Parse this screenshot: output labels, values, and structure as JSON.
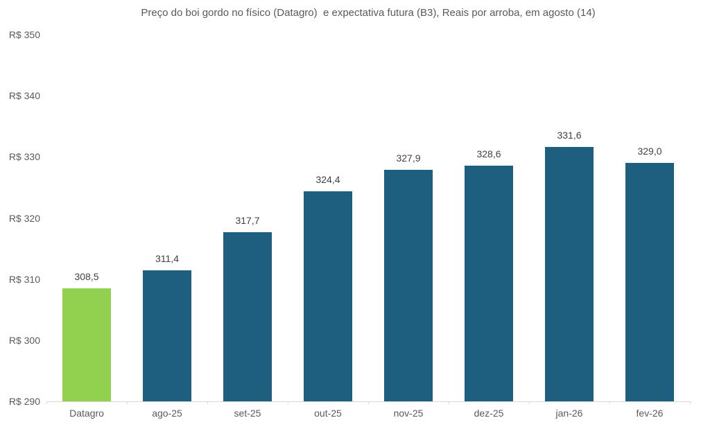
{
  "title": "Preço do boi gordo no físico (Datagro)  e expectativa futura (B3), Reais por arroba, em agosto (14)",
  "chart_data": {
    "type": "bar",
    "title": "Preço do boi gordo no físico (Datagro)  e expectativa futura (B3), Reais por arroba, em agosto (14)",
    "categories": [
      "Datagro",
      "ago-25",
      "set-25",
      "out-25",
      "nov-25",
      "dez-25",
      "jan-26",
      "fev-26"
    ],
    "values": [
      308.5,
      311.4,
      317.7,
      324.4,
      327.9,
      328.6,
      331.6,
      329.0
    ],
    "value_labels": [
      "308,5",
      "311,4",
      "317,7",
      "324,4",
      "327,9",
      "328,6",
      "331,6",
      "329,0"
    ],
    "bar_colors": [
      "#92D050",
      "#1E5F80",
      "#1E5F80",
      "#1E5F80",
      "#1E5F80",
      "#1E5F80",
      "#1E5F80",
      "#1E5F80"
    ],
    "xlabel": "",
    "ylabel": "",
    "ylim": [
      290,
      350
    ],
    "y_tick_values": [
      290,
      300,
      310,
      320,
      330,
      340,
      350
    ],
    "y_tick_labels": [
      "R$ 290",
      "R$ 300",
      "R$ 310",
      "R$ 320",
      "R$ 330",
      "R$ 340",
      "R$ 350"
    ],
    "grid": false,
    "legend": "none",
    "colors": {
      "physical_market": "#92D050",
      "futures": "#1E5F80",
      "axis_line": "#d9d9d9",
      "label_text": "#404040",
      "axis_text": "#595959"
    }
  }
}
